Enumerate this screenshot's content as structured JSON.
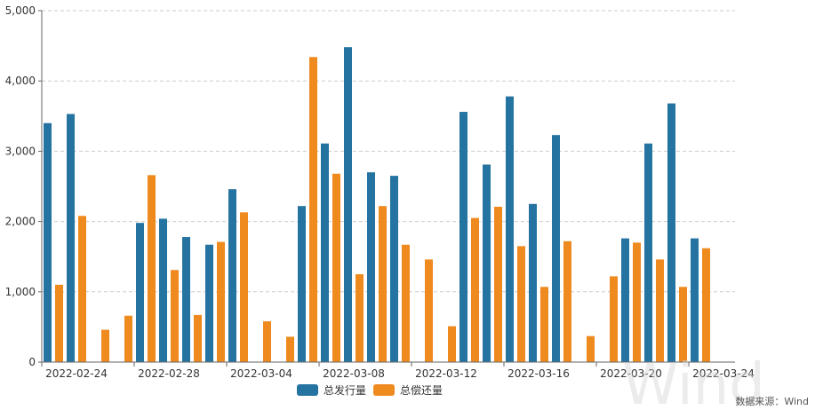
{
  "chart_data": {
    "type": "bar",
    "categories": [
      "2022-02-24",
      "2022-02-25",
      "2022-02-26",
      "2022-02-27",
      "2022-02-28",
      "2022-03-01",
      "2022-03-02",
      "2022-03-03",
      "2022-03-04",
      "2022-03-05",
      "2022-03-06",
      "2022-03-07",
      "2022-03-08",
      "2022-03-09",
      "2022-03-10",
      "2022-03-11",
      "2022-03-12",
      "2022-03-13",
      "2022-03-14",
      "2022-03-15",
      "2022-03-16",
      "2022-03-17",
      "2022-03-18",
      "2022-03-19",
      "2022-03-20",
      "2022-03-21",
      "2022-03-22",
      "2022-03-23",
      "2022-03-24",
      "2022-03-25"
    ],
    "tick_labels": [
      "2022-02-24",
      "2022-02-28",
      "2022-03-04",
      "2022-03-08",
      "2022-03-12",
      "2022-03-16",
      "2022-03-20",
      "2022-03-24"
    ],
    "tick_categories": [
      "2022-02-24",
      "2022-02-28",
      "2022-03-04",
      "2022-03-08",
      "2022-03-12",
      "2022-03-16",
      "2022-03-20",
      "2022-03-24"
    ],
    "series": [
      {
        "name": "总发行量",
        "color": "#2573a0",
        "values": [
          3400,
          3530,
          0,
          0,
          1980,
          2040,
          1780,
          1670,
          2460,
          0,
          0,
          2220,
          3110,
          4480,
          2700,
          2650,
          0,
          0,
          3560,
          2810,
          3780,
          2250,
          3230,
          0,
          0,
          1760,
          3110,
          3680,
          1760,
          0
        ]
      },
      {
        "name": "总偿还量",
        "color": "#ef8a1f",
        "values": [
          1100,
          2080,
          460,
          660,
          2660,
          1310,
          670,
          1710,
          2130,
          580,
          360,
          4340,
          2680,
          1250,
          2220,
          1670,
          1460,
          510,
          2050,
          2210,
          1650,
          1070,
          1720,
          370,
          1220,
          1700,
          1460,
          1070,
          1620,
          0
        ]
      }
    ],
    "ylim": [
      0,
      5000
    ],
    "yticks": [
      0,
      1000,
      2000,
      3000,
      4000,
      5000
    ],
    "ytick_labels": [
      "0",
      "1,000",
      "2,000",
      "3,000",
      "4,000",
      "5,000"
    ],
    "grid": true,
    "legend_position": "bottom-center",
    "xlabel": "",
    "ylabel": "",
    "title": ""
  },
  "source_note": "数据来源：Wind",
  "watermark_text": "Wind"
}
